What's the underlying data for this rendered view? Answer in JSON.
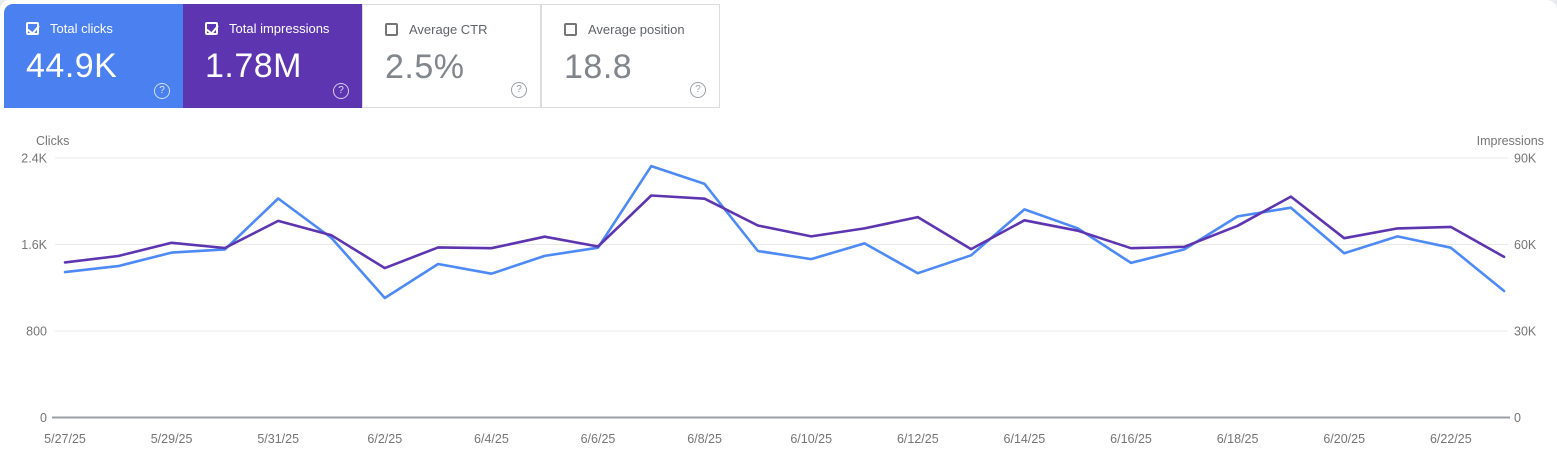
{
  "colors": {
    "clicks_accent": "#4b80f0",
    "impressions_accent": "#5e35b1",
    "clicks_line": "#4d8af5",
    "impressions_line": "#5e35b1"
  },
  "icons": {
    "help_glyph": "?"
  },
  "cards": [
    {
      "label": "Total clicks",
      "value": "44.9K",
      "checked": true,
      "bg": "#4b80f0"
    },
    {
      "label": "Total impressions",
      "value": "1.78M",
      "checked": true,
      "bg": "#5e35b1"
    },
    {
      "label": "Average CTR",
      "value": "2.5%",
      "checked": false
    },
    {
      "label": "Average position",
      "value": "18.8",
      "checked": false
    }
  ],
  "chart_data": {
    "type": "line",
    "n_points": 28,
    "points_per_x_label": 2,
    "x_tick_labels": [
      "5/27/25",
      "5/29/25",
      "5/31/25",
      "6/2/25",
      "6/4/25",
      "6/6/25",
      "6/8/25",
      "6/10/25",
      "6/12/25",
      "6/14/25",
      "6/16/25",
      "6/18/25",
      "6/20/25",
      "6/22/25"
    ],
    "left_axis": {
      "title": "Clicks",
      "ticks": [
        "0",
        "800",
        "1.6K",
        "2.4K"
      ],
      "max": 2400
    },
    "right_axis": {
      "title": "Impressions",
      "ticks": [
        "0",
        "30K",
        "60K",
        "90K"
      ],
      "max": 90000
    },
    "grid": "horizontal-only",
    "legend": "none",
    "series": [
      {
        "name": "Total clicks",
        "axis": "left",
        "color": "#4d8af5",
        "values": [
          1345,
          1400,
          1525,
          1555,
          2025,
          1660,
          1105,
          1420,
          1330,
          1495,
          1570,
          2325,
          2160,
          1540,
          1465,
          1610,
          1335,
          1500,
          1925,
          1750,
          1430,
          1555,
          1860,
          1940,
          1520,
          1675,
          1570,
          1170
        ]
      },
      {
        "name": "Total impressions",
        "axis": "right",
        "color": "#5e35b1",
        "values": [
          53800,
          56000,
          60600,
          58800,
          68200,
          63200,
          51800,
          59000,
          58700,
          62700,
          59300,
          77000,
          75900,
          66600,
          62800,
          65600,
          69500,
          58400,
          68400,
          64800,
          58700,
          59200,
          66500,
          76600,
          62200,
          65600,
          66100,
          55700
        ]
      }
    ]
  }
}
